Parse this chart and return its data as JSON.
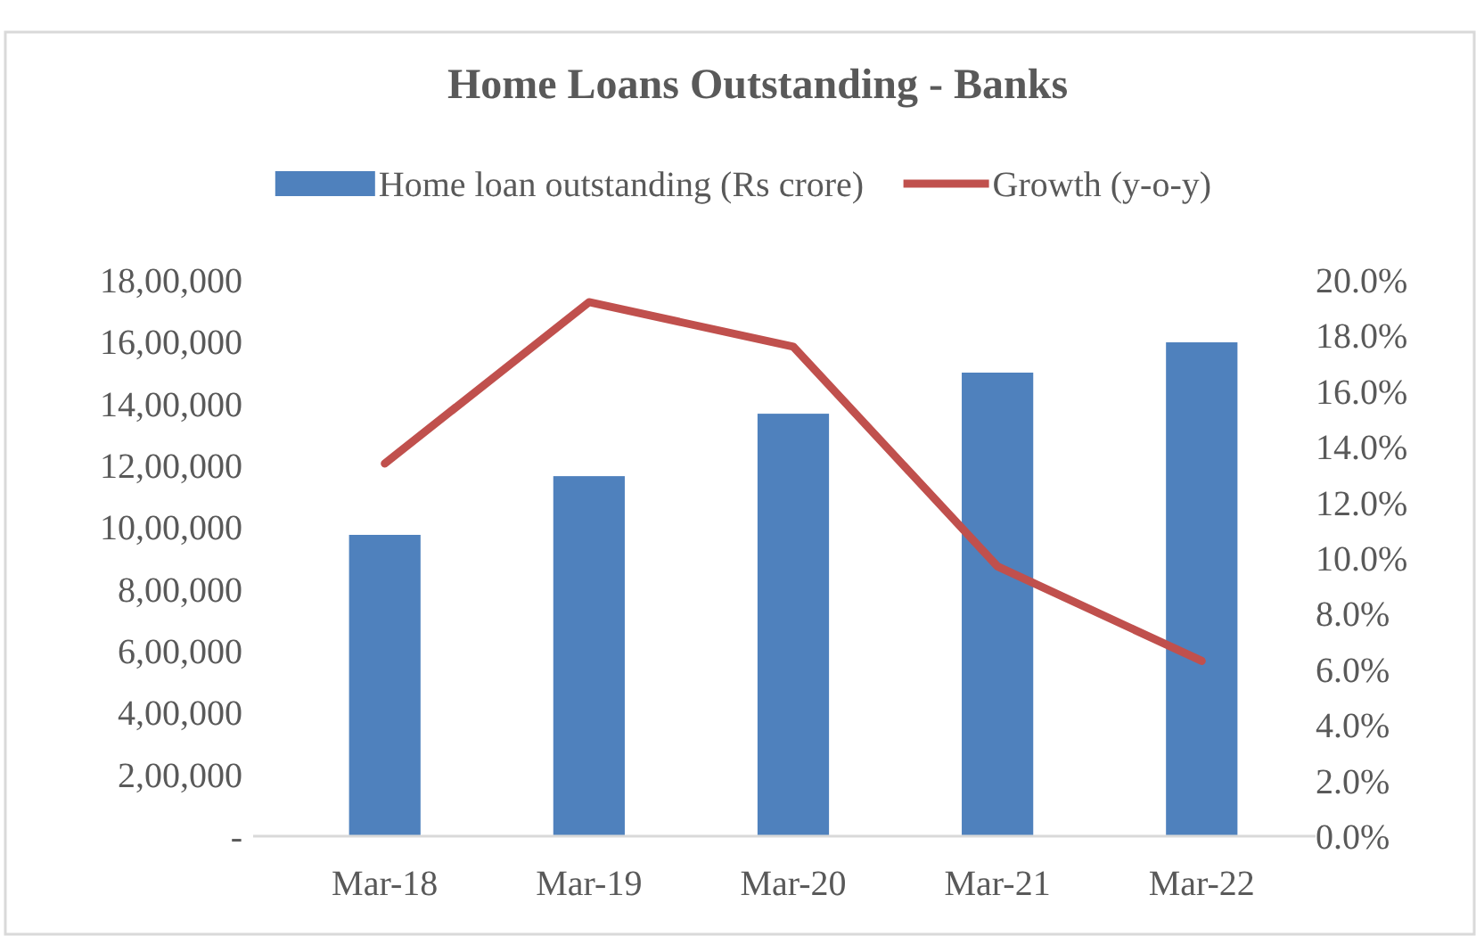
{
  "chart_data": {
    "type": "bar",
    "title": "Home Loans Outstanding - Banks",
    "categories": [
      "Mar-18",
      "Mar-19",
      "Mar-20",
      "Mar-21",
      "Mar-22"
    ],
    "series": [
      {
        "name": "Home loan outstanding (Rs crore)",
        "color": "#4f81bd",
        "values": [
          975000,
          1165000,
          1367000,
          1500000,
          1598000
        ]
      },
      {
        "name": "Growth (y-o-y)",
        "type": "line",
        "axis": "y2",
        "color": "#c0504d",
        "values": [
          13.4,
          19.2,
          17.6,
          9.7,
          6.3
        ]
      }
    ],
    "ylim": [
      0,
      1800000
    ],
    "yticks": [
      {
        "value": 0,
        "label": "-"
      },
      {
        "value": 200000,
        "label": "2,00,000"
      },
      {
        "value": 400000,
        "label": "4,00,000"
      },
      {
        "value": 600000,
        "label": "6,00,000"
      },
      {
        "value": 800000,
        "label": "8,00,000"
      },
      {
        "value": 1000000,
        "label": "10,00,000"
      },
      {
        "value": 1200000,
        "label": "12,00,000"
      },
      {
        "value": 1400000,
        "label": "14,00,000"
      },
      {
        "value": 1600000,
        "label": "16,00,000"
      },
      {
        "value": 1800000,
        "label": "18,00,000"
      }
    ],
    "y2lim": [
      0,
      20
    ],
    "y2ticks": [
      {
        "value": 0,
        "label": "0.0%"
      },
      {
        "value": 2,
        "label": "2.0%"
      },
      {
        "value": 4,
        "label": "4.0%"
      },
      {
        "value": 6,
        "label": "6.0%"
      },
      {
        "value": 8,
        "label": "8.0%"
      },
      {
        "value": 10,
        "label": "10.0%"
      },
      {
        "value": 12,
        "label": "12.0%"
      },
      {
        "value": 14,
        "label": "14.0%"
      },
      {
        "value": 16,
        "label": "16.0%"
      },
      {
        "value": 18,
        "label": "18.0%"
      },
      {
        "value": 20,
        "label": "20.0%"
      }
    ],
    "legend": "top",
    "grid": false,
    "marker": "none"
  }
}
